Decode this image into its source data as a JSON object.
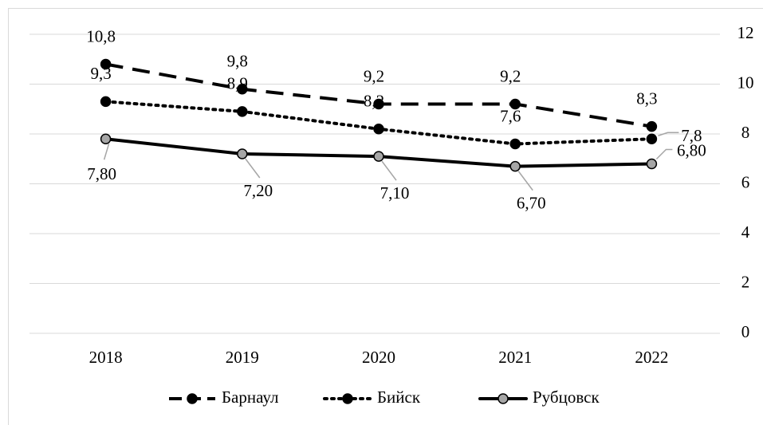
{
  "chart_data": {
    "type": "line",
    "categories": [
      "2018",
      "2019",
      "2020",
      "2021",
      "2022"
    ],
    "series": [
      {
        "name": "Барнаул",
        "color": "#000000",
        "marker_fill": "#000000",
        "dash": "dashed",
        "values": [
          10.8,
          9.8,
          9.2,
          9.2,
          8.3
        ],
        "value_labels": [
          "10,8",
          "9,8",
          "9,2",
          "9,2",
          "8,3"
        ]
      },
      {
        "name": "Бийск",
        "color": "#000000",
        "marker_fill": "#000000",
        "dash": "dotted",
        "values": [
          9.3,
          8.9,
          8.2,
          7.6,
          7.8
        ],
        "value_labels": [
          "9,3",
          "8,9",
          "8,2",
          "7,6",
          "7,8"
        ]
      },
      {
        "name": "Рубцовск",
        "color": "#000000",
        "marker_fill": "#a6a6a6",
        "dash": "solid",
        "values": [
          7.8,
          7.2,
          7.1,
          6.7,
          6.8
        ],
        "value_labels": [
          "7,80",
          "7,20",
          "7,10",
          "6,70",
          "6,80"
        ]
      }
    ],
    "ylim": [
      0,
      12
    ],
    "yticks": [
      0,
      2,
      4,
      6,
      8,
      10,
      12
    ],
    "y_axis_side": "right",
    "grid": true,
    "legend": "bottom"
  }
}
